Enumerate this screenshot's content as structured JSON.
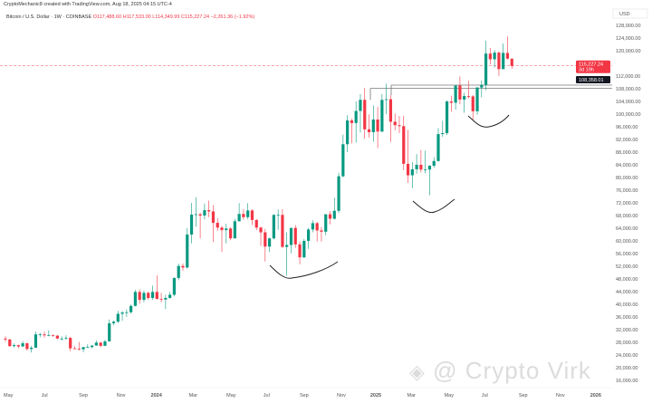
{
  "header": {
    "attribution": "CryptoMechanic8 created with TradingView.com, Aug 18, 2025 04:15 UTC-4",
    "symbol": "Bitcoin / U.S. Dollar · 1W · COINBASE",
    "open": "O117,488.60",
    "high": "H117,533.00",
    "low": "L114,349.99",
    "close": "C115,227.24",
    "change": "−2,261.36 (−1.92%)"
  },
  "currency": "USD",
  "price_labels": {
    "last": "115,227.24",
    "countdown": "3d 19h",
    "level": "108,358.01"
  },
  "watermark": "@ Crypto Virk",
  "colors": {
    "up": "#089981",
    "down": "#f23645",
    "last": "#f23645"
  },
  "chart_data": {
    "type": "candlestick",
    "title": "Bitcoin / U.S. Dollar · 1W · COINBASE",
    "ylabel": "USD",
    "ylim": [
      14000,
      130000
    ],
    "grid": false,
    "y_ticks": [
      "128,000.00",
      "124,000.00",
      "120,000.00",
      "112,000.00",
      "108,000.00",
      "104,000.00",
      "100,000.00",
      "96,000.00",
      "92,000.00",
      "88,000.00",
      "84,000.00",
      "80,000.00",
      "76,000.00",
      "72,000.00",
      "68,000.00",
      "64,000.00",
      "60,000.00",
      "56,000.00",
      "52,000.00",
      "48,000.00",
      "44,000.00",
      "40,000.00",
      "36,000.00",
      "32,000.00",
      "28,000.00",
      "24,000.00",
      "20,000.00",
      "16,000.00"
    ],
    "y_tick_values": [
      128,
      124,
      120,
      112,
      108,
      104,
      100,
      96,
      92,
      88,
      84,
      80,
      76,
      72,
      68,
      64,
      60,
      56,
      52,
      48,
      44,
      40,
      36,
      32,
      28,
      24,
      20,
      16
    ],
    "x_ticks": [
      "May",
      "Jul",
      "Sep",
      "Nov",
      "2024",
      "Mar",
      "May",
      "Jul",
      "Sep",
      "Nov",
      "2025",
      "Mar",
      "May",
      "Jul",
      "Sep",
      "Nov",
      "2026"
    ],
    "x_tick_weeks": [
      0,
      8.7,
      17.4,
      26.1,
      34,
      42.8,
      51.5,
      60,
      68.4,
      77,
      84.7,
      93.2,
      101.8,
      110.4,
      119,
      127.6,
      135.5
    ],
    "price_unit": "thousand USD",
    "candles_ohlc": [
      [
        29.2,
        29.9,
        28.2,
        28.9
      ],
      [
        28.9,
        29.1,
        26.6,
        26.8
      ],
      [
        26.8,
        27.6,
        26.4,
        27.1
      ],
      [
        27.1,
        27.3,
        26.1,
        26.7
      ],
      [
        26.7,
        28.4,
        26.5,
        27.7
      ],
      [
        27.7,
        27.9,
        25.4,
        25.9
      ],
      [
        25.9,
        26.9,
        24.8,
        26.3
      ],
      [
        26.3,
        31.4,
        26.2,
        30.5
      ],
      [
        30.5,
        31.0,
        29.6,
        30.5
      ],
      [
        30.5,
        31.4,
        29.5,
        30.2
      ],
      [
        30.2,
        31.8,
        29.9,
        30.3
      ],
      [
        30.3,
        30.4,
        29.7,
        30.1
      ],
      [
        30.1,
        30.3,
        29.0,
        29.2
      ],
      [
        29.2,
        29.9,
        28.6,
        29.2
      ],
      [
        29.2,
        30.2,
        28.8,
        29.4
      ],
      [
        29.4,
        29.7,
        25.2,
        26.1
      ],
      [
        26.1,
        26.8,
        25.8,
        26.0
      ],
      [
        26.0,
        28.1,
        25.4,
        25.8
      ],
      [
        25.8,
        26.2,
        24.9,
        26.5
      ],
      [
        26.5,
        27.4,
        26.2,
        26.5
      ],
      [
        26.5,
        27.0,
        26.1,
        27.0
      ],
      [
        27.0,
        28.6,
        26.9,
        27.9
      ],
      [
        27.9,
        28.1,
        26.5,
        26.9
      ],
      [
        26.9,
        28.8,
        26.8,
        28.3
      ],
      [
        28.3,
        35.2,
        28.3,
        34.0
      ],
      [
        34.0,
        34.9,
        33.4,
        34.5
      ],
      [
        34.5,
        37.9,
        34.1,
        37.0
      ],
      [
        37.0,
        37.9,
        34.8,
        37.4
      ],
      [
        37.4,
        38.4,
        36.0,
        37.5
      ],
      [
        37.5,
        39.9,
        37.1,
        39.5
      ],
      [
        39.5,
        44.5,
        39.3,
        43.9
      ],
      [
        43.9,
        44.7,
        40.2,
        41.4
      ],
      [
        41.4,
        44.4,
        40.6,
        43.6
      ],
      [
        43.6,
        44.0,
        41.4,
        42.0
      ],
      [
        42.0,
        45.9,
        41.4,
        43.9
      ],
      [
        43.9,
        49.1,
        41.5,
        41.7
      ],
      [
        41.7,
        43.6,
        40.6,
        41.5
      ],
      [
        41.5,
        43.0,
        38.5,
        42.0
      ],
      [
        42.0,
        43.9,
        41.8,
        43.0
      ],
      [
        43.0,
        48.5,
        42.5,
        48.3
      ],
      [
        48.3,
        52.8,
        47.6,
        52.1
      ],
      [
        52.1,
        52.9,
        50.6,
        51.6
      ],
      [
        51.6,
        64.0,
        51.3,
        62.0
      ],
      [
        62.0,
        72.0,
        59.2,
        68.3
      ],
      [
        68.3,
        73.8,
        64.5,
        68.4
      ],
      [
        68.4,
        68.9,
        60.8,
        68.0
      ],
      [
        68.0,
        71.8,
        66.8,
        69.7
      ],
      [
        69.7,
        72.7,
        67.5,
        69.3
      ],
      [
        69.3,
        71.3,
        59.6,
        65.7
      ],
      [
        65.7,
        67.2,
        63.2,
        64.2
      ],
      [
        64.2,
        64.8,
        56.5,
        63.4
      ],
      [
        63.4,
        65.4,
        59.2,
        63.9
      ],
      [
        63.9,
        64.3,
        60.2,
        60.8
      ],
      [
        60.8,
        67.0,
        60.8,
        66.2
      ],
      [
        66.2,
        71.9,
        66.1,
        68.5
      ],
      [
        68.5,
        70.0,
        66.7,
        67.5
      ],
      [
        67.5,
        71.9,
        66.9,
        69.6
      ],
      [
        69.6,
        70.0,
        65.0,
        66.6
      ],
      [
        66.6,
        66.9,
        63.4,
        64.2
      ],
      [
        64.2,
        64.5,
        58.4,
        62.7
      ],
      [
        62.7,
        63.8,
        53.5,
        58.2
      ],
      [
        58.2,
        61.0,
        56.5,
        60.8
      ],
      [
        60.8,
        68.4,
        60.5,
        68.2
      ],
      [
        68.2,
        69.9,
        63.5,
        68.2
      ],
      [
        68.2,
        70.0,
        57.8,
        58.1
      ],
      [
        58.1,
        62.7,
        49.0,
        58.7
      ],
      [
        58.7,
        61.8,
        56.1,
        64.1
      ],
      [
        64.1,
        65.0,
        57.8,
        58.9
      ],
      [
        58.9,
        59.8,
        52.6,
        54.8
      ],
      [
        54.8,
        60.6,
        54.6,
        60.0
      ],
      [
        60.0,
        64.1,
        57.5,
        63.6
      ],
      [
        63.6,
        66.5,
        62.7,
        65.6
      ],
      [
        65.6,
        66.0,
        59.8,
        63.3
      ],
      [
        63.3,
        64.4,
        59.8,
        62.9
      ],
      [
        62.9,
        68.4,
        61.8,
        68.4
      ],
      [
        68.4,
        69.4,
        65.2,
        67.0
      ],
      [
        67.0,
        73.6,
        66.7,
        69.5
      ],
      [
        69.5,
        81.5,
        68.8,
        80.4
      ],
      [
        80.4,
        93.5,
        80.0,
        90.5
      ],
      [
        90.5,
        99.6,
        88.0,
        98.0
      ],
      [
        98.0,
        98.6,
        90.8,
        97.2
      ],
      [
        97.2,
        104.0,
        91.0,
        101.0
      ],
      [
        101.0,
        106.3,
        94.2,
        104.5
      ],
      [
        104.5,
        108.3,
        92.2,
        95.2
      ],
      [
        95.2,
        99.9,
        92.6,
        94.3
      ],
      [
        94.3,
        102.7,
        91.3,
        98.3
      ],
      [
        98.3,
        102.3,
        89.3,
        94.5
      ],
      [
        94.5,
        106.4,
        94.3,
        104.5
      ],
      [
        104.5,
        109.6,
        100.0,
        104.7
      ],
      [
        104.7,
        106.0,
        91.2,
        97.6
      ],
      [
        97.6,
        100.2,
        94.9,
        96.5
      ],
      [
        96.5,
        99.4,
        94.0,
        96.2
      ],
      [
        96.2,
        99.5,
        82.3,
        84.3
      ],
      [
        84.3,
        95.0,
        78.3,
        80.7
      ],
      [
        80.7,
        84.9,
        76.6,
        82.6
      ],
      [
        82.6,
        87.4,
        81.2,
        84.0
      ],
      [
        84.0,
        88.7,
        81.6,
        82.5
      ],
      [
        82.5,
        88.5,
        81.3,
        82.5
      ],
      [
        82.5,
        83.9,
        74.4,
        83.7
      ],
      [
        83.7,
        86.4,
        83.0,
        85.2
      ],
      [
        85.2,
        95.6,
        85.0,
        93.7
      ],
      [
        93.7,
        97.9,
        92.8,
        94.0
      ],
      [
        94.0,
        104.3,
        93.4,
        104.0
      ],
      [
        104.0,
        105.8,
        100.8,
        103.6
      ],
      [
        103.6,
        107.0,
        101.4,
        109.0
      ],
      [
        109.0,
        111.9,
        103.1,
        104.6
      ],
      [
        104.6,
        106.8,
        100.4,
        105.7
      ],
      [
        105.7,
        110.5,
        104.9,
        105.6
      ],
      [
        105.6,
        106.0,
        98.2,
        100.9
      ],
      [
        100.9,
        108.5,
        99.8,
        108.4
      ],
      [
        108.4,
        110.6,
        105.3,
        109.2
      ],
      [
        109.2,
        123.2,
        107.5,
        119.1
      ],
      [
        119.1,
        120.9,
        115.7,
        117.3
      ],
      [
        117.3,
        120.2,
        114.7,
        119.4
      ],
      [
        119.4,
        119.8,
        112.0,
        114.2
      ],
      [
        114.2,
        122.3,
        114.2,
        119.3
      ],
      [
        119.3,
        124.5,
        117.2,
        117.5
      ],
      [
        117.5,
        117.5,
        114.3,
        115.2
      ]
    ],
    "last_price": 115227.24,
    "horizontal_levels": [
      108358.01,
      107500
    ],
    "annotations": [
      "hand-drawn rounded bottom 2024-Q3",
      "hand-drawn rounded bottom 2025-Q2",
      "hand-drawn rounded bottom 2025-Jun"
    ]
  }
}
